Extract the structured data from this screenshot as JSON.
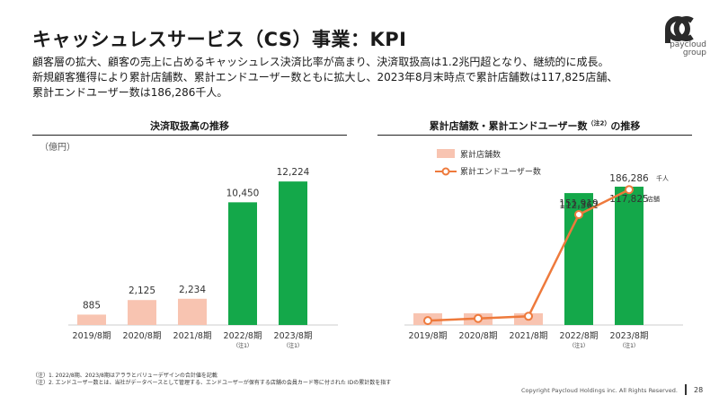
{
  "header": {
    "title": "キャッシュレスサービス（CS）事業：KPI",
    "brand_line1": "paycloud",
    "brand_line2": "group"
  },
  "description": {
    "line1": "顧客層の拡大、顧客の売上に占めるキャッシュレス決済比率が高まり、決済取扱高は1.2兆円超となり、継続的に成長。",
    "line2": "新規顧客獲得により累計店舗数、累計エンドユーザー数ともに拡大し、2023年8月末時点で累計店舗数は117,825店舗、",
    "line3": "累計エンドユーザー数は186,286千人。"
  },
  "colors": {
    "green": "#14a84a",
    "peach": "#f8c4b1",
    "orange": "#ee7a3c",
    "logo": "#2a2a2a"
  },
  "chart_data": [
    {
      "type": "bar",
      "title": "決済取扱高の推移",
      "unit_label": "（億円）",
      "categories": [
        "2019/8期",
        "2020/8期",
        "2021/8期",
        "2022/8期",
        "2023/8期"
      ],
      "category_notes": [
        "",
        "",
        "",
        "（注1）",
        "（注1）"
      ],
      "values": [
        885,
        2125,
        2234,
        10450,
        12224
      ],
      "value_labels": [
        "885",
        "2,125",
        "2,234",
        "10,450",
        "12,224"
      ],
      "highlight": [
        false,
        false,
        false,
        true,
        true
      ],
      "ylim": [
        0,
        13000
      ]
    },
    {
      "type": "bar+line",
      "title": "累計店舗数・累計エンドユーザー数",
      "title_note": "（注2）",
      "title_suffix": "の推移",
      "categories": [
        "2019/8期",
        "2020/8期",
        "2021/8期",
        "2022/8期",
        "2023/8期"
      ],
      "category_notes": [
        "",
        "",
        "",
        "（注1）",
        "（注1）"
      ],
      "legend": {
        "bars": "累計店舗数",
        "line": "累計エンドユーザー数"
      },
      "bars": {
        "name": "累計店舗数",
        "values": [
          10000,
          10000,
          10000,
          112362,
          117825
        ],
        "labels": [
          "",
          "",
          "",
          "112,362",
          "117,825"
        ],
        "unit": "店舗",
        "highlight": [
          false,
          false,
          false,
          true,
          true
        ],
        "ylim": [
          0,
          130000
        ]
      },
      "line": {
        "name": "累計エンドユーザー数",
        "values": [
          6000,
          9000,
          12000,
          151919,
          186286
        ],
        "labels": [
          "",
          "",
          "",
          "151,919",
          "186,286"
        ],
        "unit": "千人",
        "ylim": [
          0,
          210000
        ]
      }
    }
  ],
  "footer": {
    "note1": "（注）1. 2022/8期、2023/8期はアララとバリューデザインの合計値を記載",
    "note2": "（注）2. エンドユーザー数とは、当社がデータベースとして管理する、エンドユーザーが保有する店舗の会員カード等に付された IDの累計数を指す",
    "copyright": "Copyright Paycloud Holdings inc. All Rights Reserved.",
    "page": "28"
  }
}
